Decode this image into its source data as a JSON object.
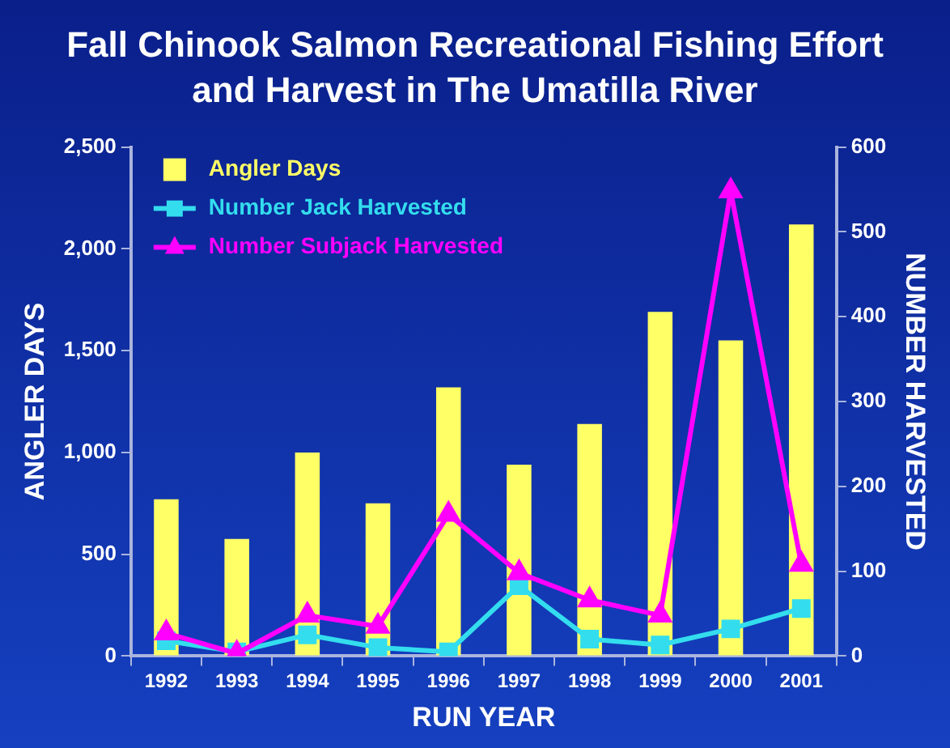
{
  "chart_data": {
    "type": "bar",
    "title": "Fall Chinook Salmon Recreational Fishing Effort and Harvest in The Umatilla River",
    "xlabel": "RUN YEAR",
    "ylabel": "ANGLER DAYS",
    "y2label": "NUMBER HARVESTED",
    "categories": [
      "1992",
      "1993",
      "1994",
      "1995",
      "1996",
      "1997",
      "1998",
      "1999",
      "2000",
      "2001"
    ],
    "series": [
      {
        "name": "Angler Days",
        "color": "#ffff66",
        "values": [
          770,
          575,
          1000,
          750,
          1320,
          940,
          1140,
          1690,
          1550,
          2120
        ]
      },
      {
        "name": "Number Jack Harvested",
        "type": "line",
        "axis": "y2",
        "marker": "square",
        "color": "#33ddee",
        "values": [
          18,
          5,
          25,
          10,
          5,
          83,
          20,
          13,
          32,
          56
        ]
      },
      {
        "name": "Number Subjack Harvested",
        "type": "line",
        "axis": "y2",
        "marker": "triangle",
        "color": "#ff00ff",
        "values": [
          27,
          3,
          48,
          35,
          167,
          98,
          66,
          48,
          548,
          108
        ]
      }
    ],
    "ylim": [
      0,
      2500
    ],
    "yticks": [
      {
        "value": 0,
        "label": "0"
      },
      {
        "value": 500,
        "label": "500"
      },
      {
        "value": 1000,
        "label": "1,000"
      },
      {
        "value": 1500,
        "label": "1,500"
      },
      {
        "value": 2000,
        "label": "2,000"
      },
      {
        "value": 2500,
        "label": "2,500"
      }
    ],
    "y2lim": [
      0,
      600
    ],
    "y2ticks": [
      0,
      100,
      200,
      300,
      400,
      500,
      600
    ],
    "grid": false,
    "legend": "top left",
    "line_style": "solid"
  }
}
